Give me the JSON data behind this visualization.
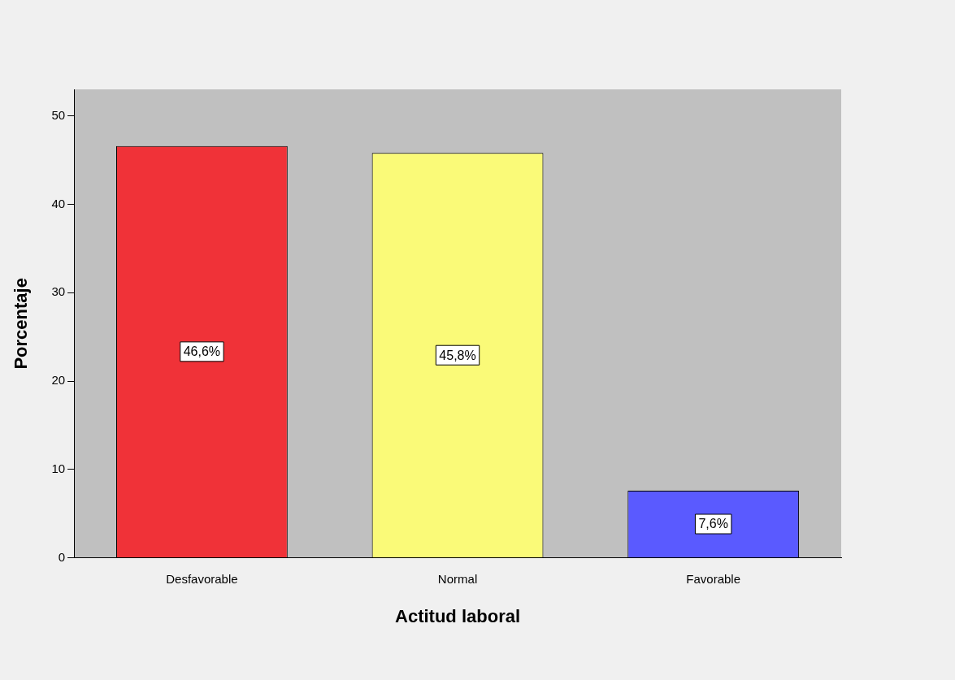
{
  "chart_data": {
    "type": "bar",
    "xlabel": "Actitud laboral",
    "ylabel": "Porcentaje",
    "categories": [
      "Desfavorable",
      "Normal",
      "Favorable"
    ],
    "values": [
      46.6,
      45.8,
      7.6
    ],
    "colors": [
      "#f03238",
      "#fafa78",
      "#5a5aff"
    ],
    "value_labels": [
      "46,6%",
      "45,8%",
      "7,6%"
    ],
    "ylim": [
      0,
      53
    ],
    "yticks": [
      0,
      10,
      20,
      30,
      40,
      50
    ]
  }
}
